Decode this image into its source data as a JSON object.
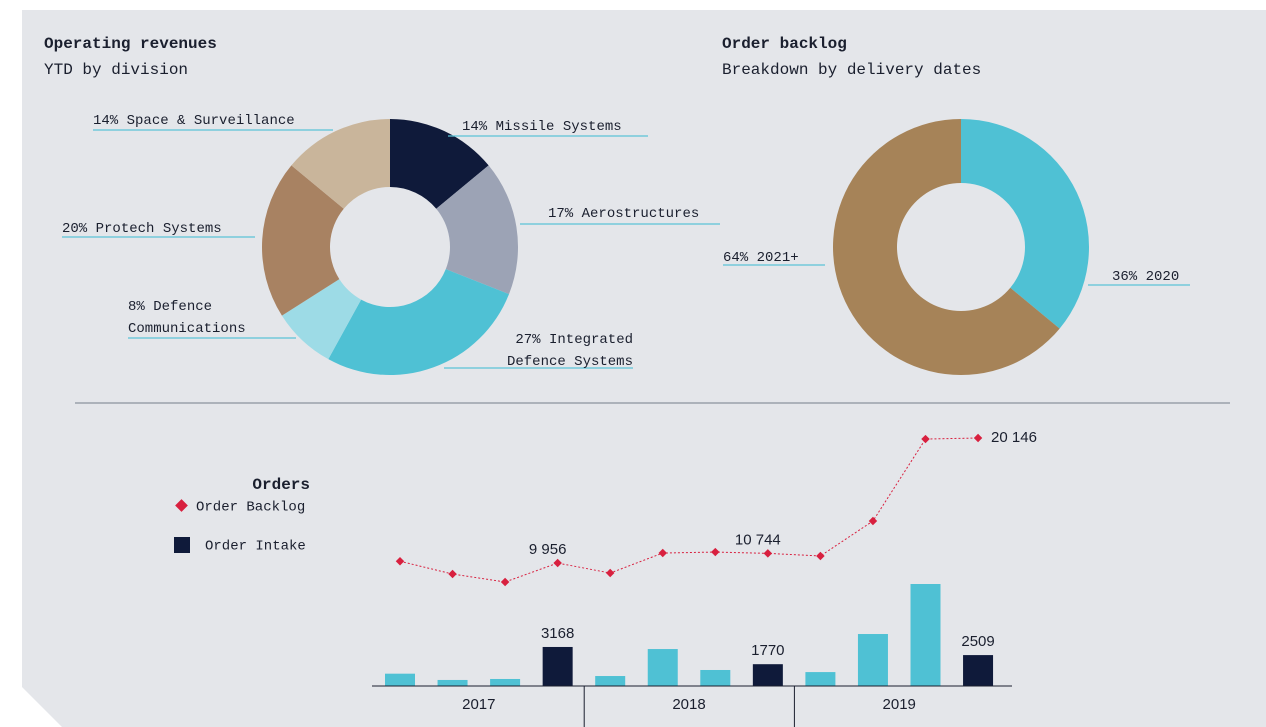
{
  "chart_data": [
    {
      "type": "donut",
      "title": "Operating revenues",
      "subtitle": "YTD by division",
      "categories": [
        "Missile Systems",
        "Aerostructures",
        "Integrated Defence Systems",
        "Defence Communications",
        "Protech Systems",
        "Space & Surveillance"
      ],
      "values": [
        14,
        17,
        27,
        8,
        20,
        14
      ],
      "value_labels": [
        "14%",
        "17%",
        "27%",
        "8%",
        "20%",
        "14%"
      ],
      "colors": [
        "#0f1a3a",
        "#9ca3b5",
        "#4fc1d4",
        "#9ddbe6",
        "#a88262",
        "#c9b59b"
      ]
    },
    {
      "type": "donut",
      "title": "Order backlog",
      "subtitle": "Breakdown by delivery dates",
      "categories": [
        "2020",
        "2021+"
      ],
      "values": [
        36,
        64
      ],
      "value_labels": [
        "36%",
        "64%"
      ],
      "colors": [
        "#4fc1d4",
        "#a68358"
      ]
    },
    {
      "type": "combo",
      "title": "Orders",
      "categories": [
        null,
        null,
        null,
        null,
        null,
        null,
        null,
        null,
        null,
        null,
        null,
        null
      ],
      "groups": [
        "2017",
        "2018",
        "2019"
      ],
      "series": [
        {
          "name": "Order Backlog",
          "type": "line",
          "color": "#d8203f",
          "values": [
            10100,
            9060,
            8410,
            9956,
            9140,
            10770,
            10850,
            10744,
            10530,
            13380,
            20060,
            20146
          ],
          "value_labels": [
            null,
            null,
            null,
            "9 956",
            null,
            null,
            null,
            "10 744",
            null,
            null,
            null,
            "20 146"
          ]
        },
        {
          "name": "Order Intake",
          "type": "bar",
          "color": "#0f1a3a",
          "values": [
            1000,
            490,
            570,
            3168,
            810,
            3000,
            1300,
            1770,
            1130,
            4220,
            8280,
            2509
          ],
          "value_labels": [
            null,
            null,
            null,
            "3168",
            null,
            null,
            null,
            "1770",
            null,
            null,
            null,
            "2509"
          ],
          "colors": [
            "#4fc1d4",
            "#4fc1d4",
            "#4fc1d4",
            "#0f1a3a",
            "#4fc1d4",
            "#4fc1d4",
            "#4fc1d4",
            "#0f1a3a",
            "#4fc1d4",
            "#4fc1d4",
            "#4fc1d4",
            "#0f1a3a"
          ]
        }
      ]
    }
  ]
}
